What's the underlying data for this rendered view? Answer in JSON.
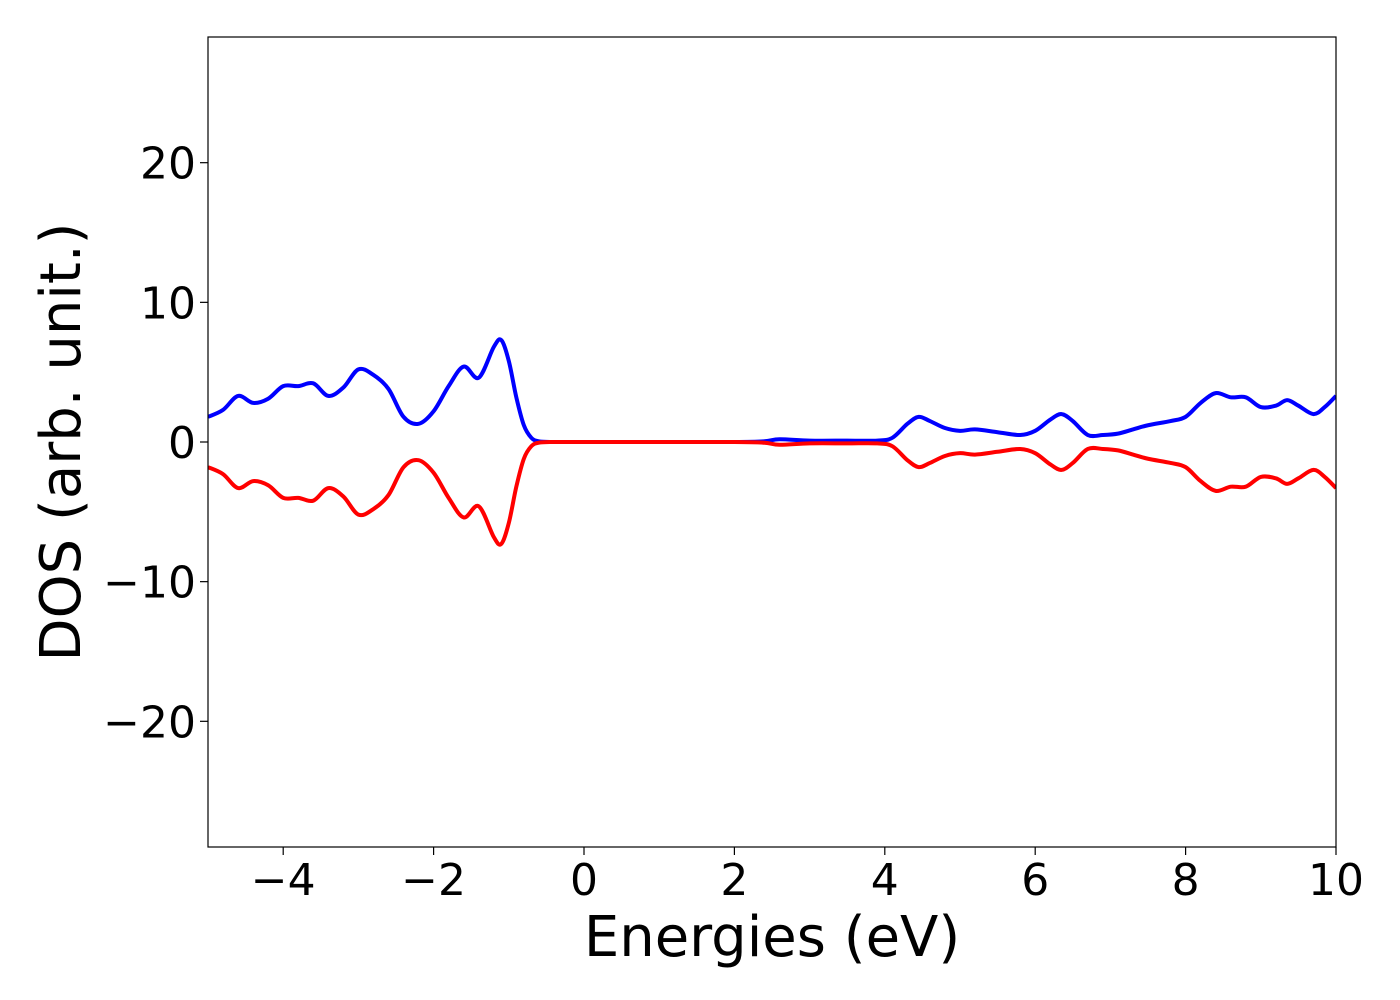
{
  "chart_data": {
    "type": "line",
    "title": "",
    "xlabel": "Energies (eV)",
    "ylabel": "DOS (arb. unit.)",
    "xlim": [
      -5,
      10
    ],
    "ylim": [
      -29,
      29
    ],
    "xticks": [
      -4,
      -2,
      0,
      2,
      4,
      6,
      8,
      10
    ],
    "xtick_labels": [
      "−4",
      "−2",
      "0",
      "2",
      "4",
      "6",
      "8",
      "10"
    ],
    "yticks": [
      -20,
      -10,
      0,
      10,
      20
    ],
    "ytick_labels": [
      "−20",
      "−10",
      "0",
      "10",
      "20"
    ],
    "grid": false,
    "legend": "none",
    "series": [
      {
        "color": "#0000ff",
        "points": [
          [
            -5.0,
            1.8
          ],
          [
            -4.8,
            2.3
          ],
          [
            -4.6,
            3.3
          ],
          [
            -4.4,
            2.8
          ],
          [
            -4.2,
            3.1
          ],
          [
            -4.0,
            4.0
          ],
          [
            -3.8,
            4.0
          ],
          [
            -3.6,
            4.2
          ],
          [
            -3.4,
            3.3
          ],
          [
            -3.2,
            3.9
          ],
          [
            -3.0,
            5.2
          ],
          [
            -2.8,
            4.8
          ],
          [
            -2.6,
            3.8
          ],
          [
            -2.4,
            1.8
          ],
          [
            -2.2,
            1.3
          ],
          [
            -2.0,
            2.2
          ],
          [
            -1.8,
            4.0
          ],
          [
            -1.6,
            5.4
          ],
          [
            -1.4,
            4.6
          ],
          [
            -1.2,
            6.8
          ],
          [
            -1.1,
            7.3
          ],
          [
            -1.0,
            5.8
          ],
          [
            -0.9,
            3.2
          ],
          [
            -0.8,
            1.2
          ],
          [
            -0.7,
            0.3
          ],
          [
            -0.6,
            0.05
          ],
          [
            -0.4,
            0.0
          ],
          [
            0.0,
            0.0
          ],
          [
            1.0,
            0.0
          ],
          [
            2.0,
            0.0
          ],
          [
            2.4,
            0.05
          ],
          [
            2.6,
            0.2
          ],
          [
            3.0,
            0.1
          ],
          [
            3.5,
            0.1
          ],
          [
            3.9,
            0.1
          ],
          [
            4.1,
            0.3
          ],
          [
            4.3,
            1.3
          ],
          [
            4.45,
            1.8
          ],
          [
            4.6,
            1.5
          ],
          [
            4.8,
            1.0
          ],
          [
            5.0,
            0.8
          ],
          [
            5.2,
            0.9
          ],
          [
            5.5,
            0.7
          ],
          [
            5.8,
            0.5
          ],
          [
            6.0,
            0.8
          ],
          [
            6.2,
            1.6
          ],
          [
            6.35,
            2.0
          ],
          [
            6.5,
            1.5
          ],
          [
            6.7,
            0.5
          ],
          [
            6.9,
            0.5
          ],
          [
            7.1,
            0.6
          ],
          [
            7.3,
            0.9
          ],
          [
            7.5,
            1.2
          ],
          [
            7.8,
            1.5
          ],
          [
            8.0,
            1.8
          ],
          [
            8.2,
            2.8
          ],
          [
            8.4,
            3.5
          ],
          [
            8.6,
            3.2
          ],
          [
            8.8,
            3.2
          ],
          [
            9.0,
            2.5
          ],
          [
            9.2,
            2.6
          ],
          [
            9.35,
            3.0
          ],
          [
            9.5,
            2.6
          ],
          [
            9.7,
            2.0
          ],
          [
            9.85,
            2.5
          ],
          [
            10.0,
            3.3
          ]
        ]
      },
      {
        "color": "#ff0000",
        "points": [
          [
            -5.0,
            -1.8
          ],
          [
            -4.8,
            -2.3
          ],
          [
            -4.6,
            -3.3
          ],
          [
            -4.4,
            -2.8
          ],
          [
            -4.2,
            -3.1
          ],
          [
            -4.0,
            -4.0
          ],
          [
            -3.8,
            -4.0
          ],
          [
            -3.6,
            -4.2
          ],
          [
            -3.4,
            -3.3
          ],
          [
            -3.2,
            -3.9
          ],
          [
            -3.0,
            -5.2
          ],
          [
            -2.8,
            -4.8
          ],
          [
            -2.6,
            -3.8
          ],
          [
            -2.4,
            -1.8
          ],
          [
            -2.2,
            -1.3
          ],
          [
            -2.0,
            -2.2
          ],
          [
            -1.8,
            -4.0
          ],
          [
            -1.6,
            -5.4
          ],
          [
            -1.4,
            -4.6
          ],
          [
            -1.2,
            -6.8
          ],
          [
            -1.1,
            -7.3
          ],
          [
            -1.0,
            -5.8
          ],
          [
            -0.9,
            -3.2
          ],
          [
            -0.8,
            -1.2
          ],
          [
            -0.7,
            -0.3
          ],
          [
            -0.6,
            -0.05
          ],
          [
            -0.4,
            0.0
          ],
          [
            0.0,
            0.0
          ],
          [
            1.0,
            0.0
          ],
          [
            2.0,
            0.0
          ],
          [
            2.4,
            -0.05
          ],
          [
            2.6,
            -0.2
          ],
          [
            3.0,
            -0.1
          ],
          [
            3.5,
            -0.1
          ],
          [
            3.9,
            -0.1
          ],
          [
            4.1,
            -0.3
          ],
          [
            4.3,
            -1.3
          ],
          [
            4.45,
            -1.8
          ],
          [
            4.6,
            -1.5
          ],
          [
            4.8,
            -1.0
          ],
          [
            5.0,
            -0.8
          ],
          [
            5.2,
            -0.9
          ],
          [
            5.5,
            -0.7
          ],
          [
            5.8,
            -0.5
          ],
          [
            6.0,
            -0.8
          ],
          [
            6.2,
            -1.6
          ],
          [
            6.35,
            -2.0
          ],
          [
            6.5,
            -1.5
          ],
          [
            6.7,
            -0.5
          ],
          [
            6.9,
            -0.5
          ],
          [
            7.1,
            -0.6
          ],
          [
            7.3,
            -0.9
          ],
          [
            7.5,
            -1.2
          ],
          [
            7.8,
            -1.5
          ],
          [
            8.0,
            -1.8
          ],
          [
            8.2,
            -2.8
          ],
          [
            8.4,
            -3.5
          ],
          [
            8.6,
            -3.2
          ],
          [
            8.8,
            -3.2
          ],
          [
            9.0,
            -2.5
          ],
          [
            9.2,
            -2.6
          ],
          [
            9.35,
            -3.0
          ],
          [
            9.5,
            -2.6
          ],
          [
            9.7,
            -2.0
          ],
          [
            9.85,
            -2.5
          ],
          [
            10.0,
            -3.3
          ]
        ]
      }
    ]
  }
}
